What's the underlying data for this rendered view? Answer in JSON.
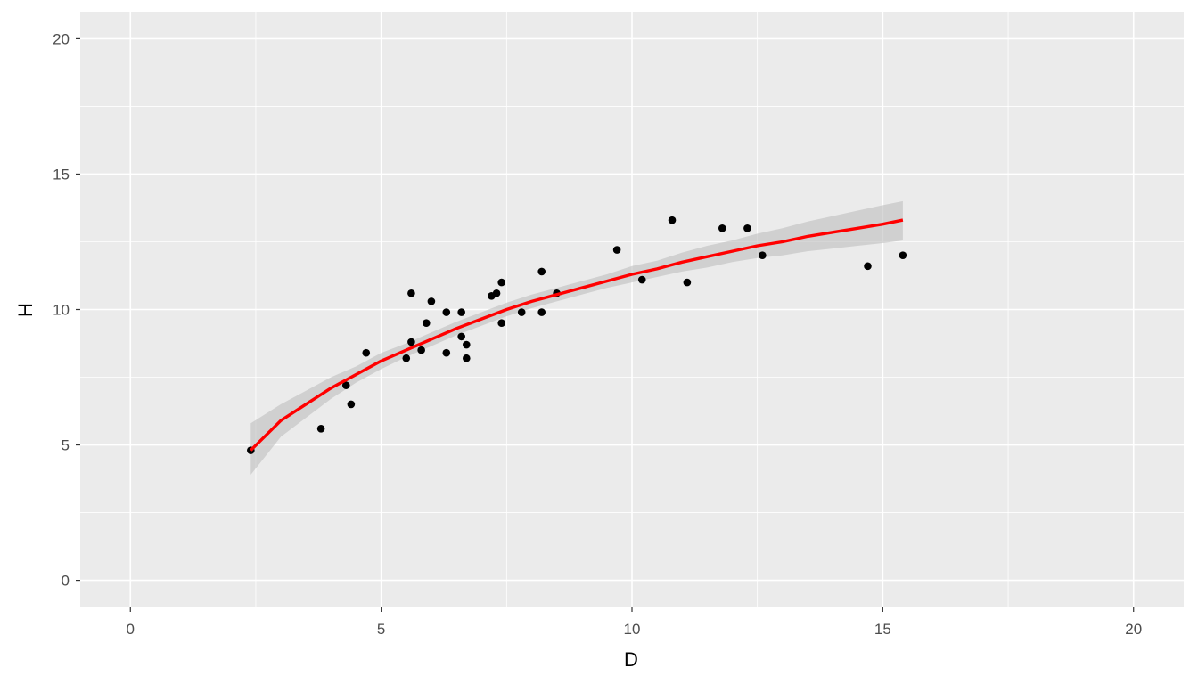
{
  "chart_data": {
    "type": "scatter",
    "xlabel": "D",
    "ylabel": "H",
    "xlim": [
      -1,
      21
    ],
    "ylim": [
      -1,
      21
    ],
    "x_ticks": [
      "0",
      "5",
      "10",
      "15",
      "20"
    ],
    "y_ticks": [
      "0",
      "5",
      "10",
      "15",
      "20"
    ],
    "grid": true,
    "colors": {
      "panel_background": "#ebebeb",
      "grid": "#ffffff",
      "points": "#000000",
      "fit_line": "#ff0000",
      "confidence_band": "#bebebe"
    },
    "points": [
      {
        "x": 2.4,
        "y": 4.8
      },
      {
        "x": 3.8,
        "y": 5.6
      },
      {
        "x": 4.3,
        "y": 7.2
      },
      {
        "x": 4.4,
        "y": 6.5
      },
      {
        "x": 4.7,
        "y": 8.4
      },
      {
        "x": 5.5,
        "y": 8.2
      },
      {
        "x": 5.6,
        "y": 10.6
      },
      {
        "x": 5.6,
        "y": 8.8
      },
      {
        "x": 5.8,
        "y": 8.5
      },
      {
        "x": 5.9,
        "y": 9.5
      },
      {
        "x": 6.0,
        "y": 10.3
      },
      {
        "x": 6.3,
        "y": 9.9
      },
      {
        "x": 6.3,
        "y": 8.4
      },
      {
        "x": 6.6,
        "y": 9.9
      },
      {
        "x": 6.6,
        "y": 9.0
      },
      {
        "x": 6.7,
        "y": 8.7
      },
      {
        "x": 6.7,
        "y": 8.2
      },
      {
        "x": 7.2,
        "y": 10.5
      },
      {
        "x": 7.3,
        "y": 10.6
      },
      {
        "x": 7.4,
        "y": 11.0
      },
      {
        "x": 7.4,
        "y": 9.5
      },
      {
        "x": 7.8,
        "y": 9.9
      },
      {
        "x": 8.2,
        "y": 11.4
      },
      {
        "x": 8.2,
        "y": 9.9
      },
      {
        "x": 8.5,
        "y": 10.6
      },
      {
        "x": 9.7,
        "y": 12.2
      },
      {
        "x": 10.2,
        "y": 11.1
      },
      {
        "x": 10.8,
        "y": 13.3
      },
      {
        "x": 11.1,
        "y": 11.0
      },
      {
        "x": 11.8,
        "y": 13.0
      },
      {
        "x": 12.3,
        "y": 13.0
      },
      {
        "x": 12.6,
        "y": 12.0
      },
      {
        "x": 14.7,
        "y": 11.6
      },
      {
        "x": 15.4,
        "y": 12.0
      }
    ],
    "fit_line": [
      {
        "x": 2.4,
        "y": 4.8,
        "lower": 3.9,
        "upper": 5.8
      },
      {
        "x": 3.0,
        "y": 5.9,
        "lower": 5.3,
        "upper": 6.5
      },
      {
        "x": 3.5,
        "y": 6.5,
        "lower": 6.0,
        "upper": 7.0
      },
      {
        "x": 4.0,
        "y": 7.1,
        "lower": 6.7,
        "upper": 7.5
      },
      {
        "x": 4.5,
        "y": 7.6,
        "lower": 7.3,
        "upper": 7.9
      },
      {
        "x": 5.0,
        "y": 8.1,
        "lower": 7.8,
        "upper": 8.4
      },
      {
        "x": 5.5,
        "y": 8.5,
        "lower": 8.25,
        "upper": 8.75
      },
      {
        "x": 6.0,
        "y": 8.9,
        "lower": 8.65,
        "upper": 9.15
      },
      {
        "x": 6.5,
        "y": 9.3,
        "lower": 9.05,
        "upper": 9.55
      },
      {
        "x": 7.0,
        "y": 9.65,
        "lower": 9.4,
        "upper": 9.9
      },
      {
        "x": 7.5,
        "y": 10.0,
        "lower": 9.75,
        "upper": 10.25
      },
      {
        "x": 8.0,
        "y": 10.3,
        "lower": 10.05,
        "upper": 10.55
      },
      {
        "x": 8.5,
        "y": 10.55,
        "lower": 10.3,
        "upper": 10.8
      },
      {
        "x": 9.0,
        "y": 10.8,
        "lower": 10.55,
        "upper": 11.05
      },
      {
        "x": 9.5,
        "y": 11.05,
        "lower": 10.8,
        "upper": 11.3
      },
      {
        "x": 10.0,
        "y": 11.3,
        "lower": 11.0,
        "upper": 11.6
      },
      {
        "x": 10.5,
        "y": 11.5,
        "lower": 11.2,
        "upper": 11.8
      },
      {
        "x": 11.0,
        "y": 11.75,
        "lower": 11.4,
        "upper": 12.1
      },
      {
        "x": 11.5,
        "y": 11.95,
        "lower": 11.55,
        "upper": 12.35
      },
      {
        "x": 12.0,
        "y": 12.15,
        "lower": 11.75,
        "upper": 12.55
      },
      {
        "x": 12.5,
        "y": 12.35,
        "lower": 11.9,
        "upper": 12.8
      },
      {
        "x": 13.0,
        "y": 12.5,
        "lower": 12.0,
        "upper": 13.0
      },
      {
        "x": 13.5,
        "y": 12.7,
        "lower": 12.15,
        "upper": 13.25
      },
      {
        "x": 14.0,
        "y": 12.85,
        "lower": 12.25,
        "upper": 13.45
      },
      {
        "x": 14.5,
        "y": 13.0,
        "lower": 12.35,
        "upper": 13.65
      },
      {
        "x": 15.0,
        "y": 13.15,
        "lower": 12.45,
        "upper": 13.85
      },
      {
        "x": 15.4,
        "y": 13.3,
        "lower": 12.55,
        "upper": 14.0
      }
    ]
  }
}
